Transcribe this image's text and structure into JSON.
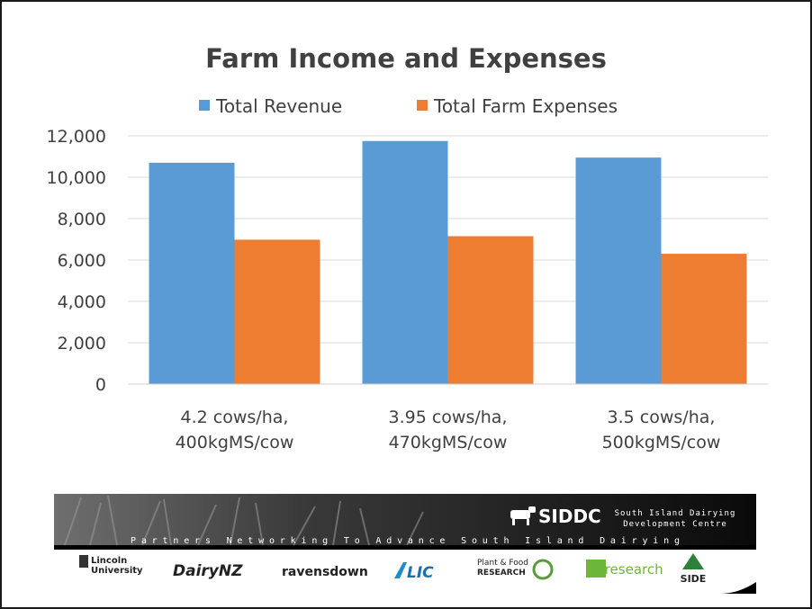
{
  "chart_data": {
    "type": "bar",
    "title": "Farm Income and Expenses",
    "categories": [
      [
        "4.2 cows/ha,",
        "400kgMS/cow"
      ],
      [
        "3.95 cows/ha,",
        "470kgMS/cow"
      ],
      [
        "3.5 cows/ha,",
        "500kgMS/cow"
      ]
    ],
    "series": [
      {
        "name": "Total Revenue",
        "values": [
          10700,
          11750,
          10950
        ],
        "color": "#5b9bd5"
      },
      {
        "name": "Total Farm Expenses",
        "values": [
          6980,
          7150,
          6300
        ],
        "color": "#ed7d31"
      }
    ],
    "ylim": [
      0,
      12000
    ],
    "yticks": [
      "0",
      "2,000",
      "4,000",
      "6,000",
      "8,000",
      "10,000",
      "12,000"
    ],
    "ytick_values": [
      0,
      2000,
      4000,
      6000,
      8000,
      10000,
      12000
    ],
    "grid": true,
    "legend": "top-center",
    "xlabel": "",
    "ylabel": ""
  },
  "banner": {
    "org": "SIDDC",
    "org_full": [
      "South Island Dairying",
      "Development Centre"
    ],
    "tagline": "Partners Networking To Advance South Island Dairying",
    "partners": [
      {
        "name": "Lincoln University",
        "lines": [
          "Lincoln",
          "University"
        ]
      },
      {
        "name": "DairyNZ",
        "lines": [
          "DairyNZ"
        ]
      },
      {
        "name": "ravensdown",
        "lines": [
          "ravensdown"
        ]
      },
      {
        "name": "LIC",
        "lines": [
          "LIC"
        ]
      },
      {
        "name": "Plant & Food Research",
        "lines": [
          "Plant & Food",
          "RESEARCH"
        ]
      },
      {
        "name": "agresearch",
        "lines": [
          "agresearch"
        ]
      },
      {
        "name": "SIDE",
        "lines": [
          "SIDE"
        ]
      }
    ]
  }
}
